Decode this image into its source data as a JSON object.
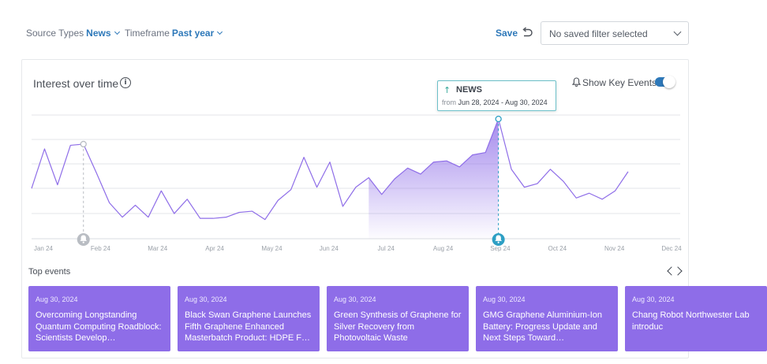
{
  "filters": {
    "source_label": "Source Types",
    "source_value": "News",
    "timeframe_label": "Timeframe",
    "timeframe_value": "Past year",
    "save_label": "Save",
    "saved_filter": "No saved filter selected"
  },
  "chart": {
    "title": "Interest over time",
    "show_key_events_label": "Show Key Events",
    "show_key_events": true,
    "tooltip": {
      "title": "NEWS",
      "from_label": "from",
      "range": "Jun 28, 2024 - Aug 30, 2024"
    }
  },
  "chart_data": {
    "type": "area",
    "x_tick_labels": [
      "Jan 24",
      "Feb 24",
      "Mar 24",
      "Apr 24",
      "May 24",
      "Jun 24",
      "Jul 24",
      "Aug 24",
      "Sep 24",
      "Oct 24",
      "Nov 24",
      "Dec 24"
    ],
    "grid": true,
    "y_axis_labels_shown": false,
    "series": [
      {
        "values": [
          42,
          75,
          45,
          78,
          79,
          55,
          30,
          18,
          28,
          18,
          40,
          21,
          33,
          17,
          17,
          18,
          22,
          23,
          16,
          32,
          41,
          68,
          43,
          64,
          27,
          43,
          51,
          37,
          50,
          59,
          54,
          64,
          65,
          60,
          70,
          72,
          100,
          58,
          43,
          46,
          58,
          48,
          34,
          38,
          33,
          40,
          56
        ],
        "highlight_range": [
          26,
          36
        ],
        "color": "#8e6de8"
      }
    ],
    "key_events": [
      {
        "index": 4,
        "active": false
      },
      {
        "index": 36,
        "active": true
      }
    ]
  },
  "events": {
    "title": "Top events",
    "items": [
      {
        "date": "Aug 30, 2024",
        "headline": "Overcoming Longstanding Quantum Computing Roadblock: Scientists Develop…"
      },
      {
        "date": "Aug 30, 2024",
        "headline": "Black Swan Graphene Launches Fifth Graphene Enhanced Masterbatch Product: HDPE F…"
      },
      {
        "date": "Aug 30, 2024",
        "headline": "Green Synthesis of Graphene for Silver Recovery from Photovoltaic Waste"
      },
      {
        "date": "Aug 30, 2024",
        "headline": "GMG Graphene Aluminium-Ion Battery: Progress Update and Next Steps Toward…"
      },
      {
        "date": "Aug 30, 2024",
        "headline": "Chang Robot Northwester Lab introduc"
      }
    ]
  },
  "colors": {
    "accent": "#2d78b9",
    "series": "#8e6de8",
    "card": "#8e6de8",
    "key_event_active": "#2d9fc4",
    "key_event_inactive": "#b9bdc3"
  }
}
